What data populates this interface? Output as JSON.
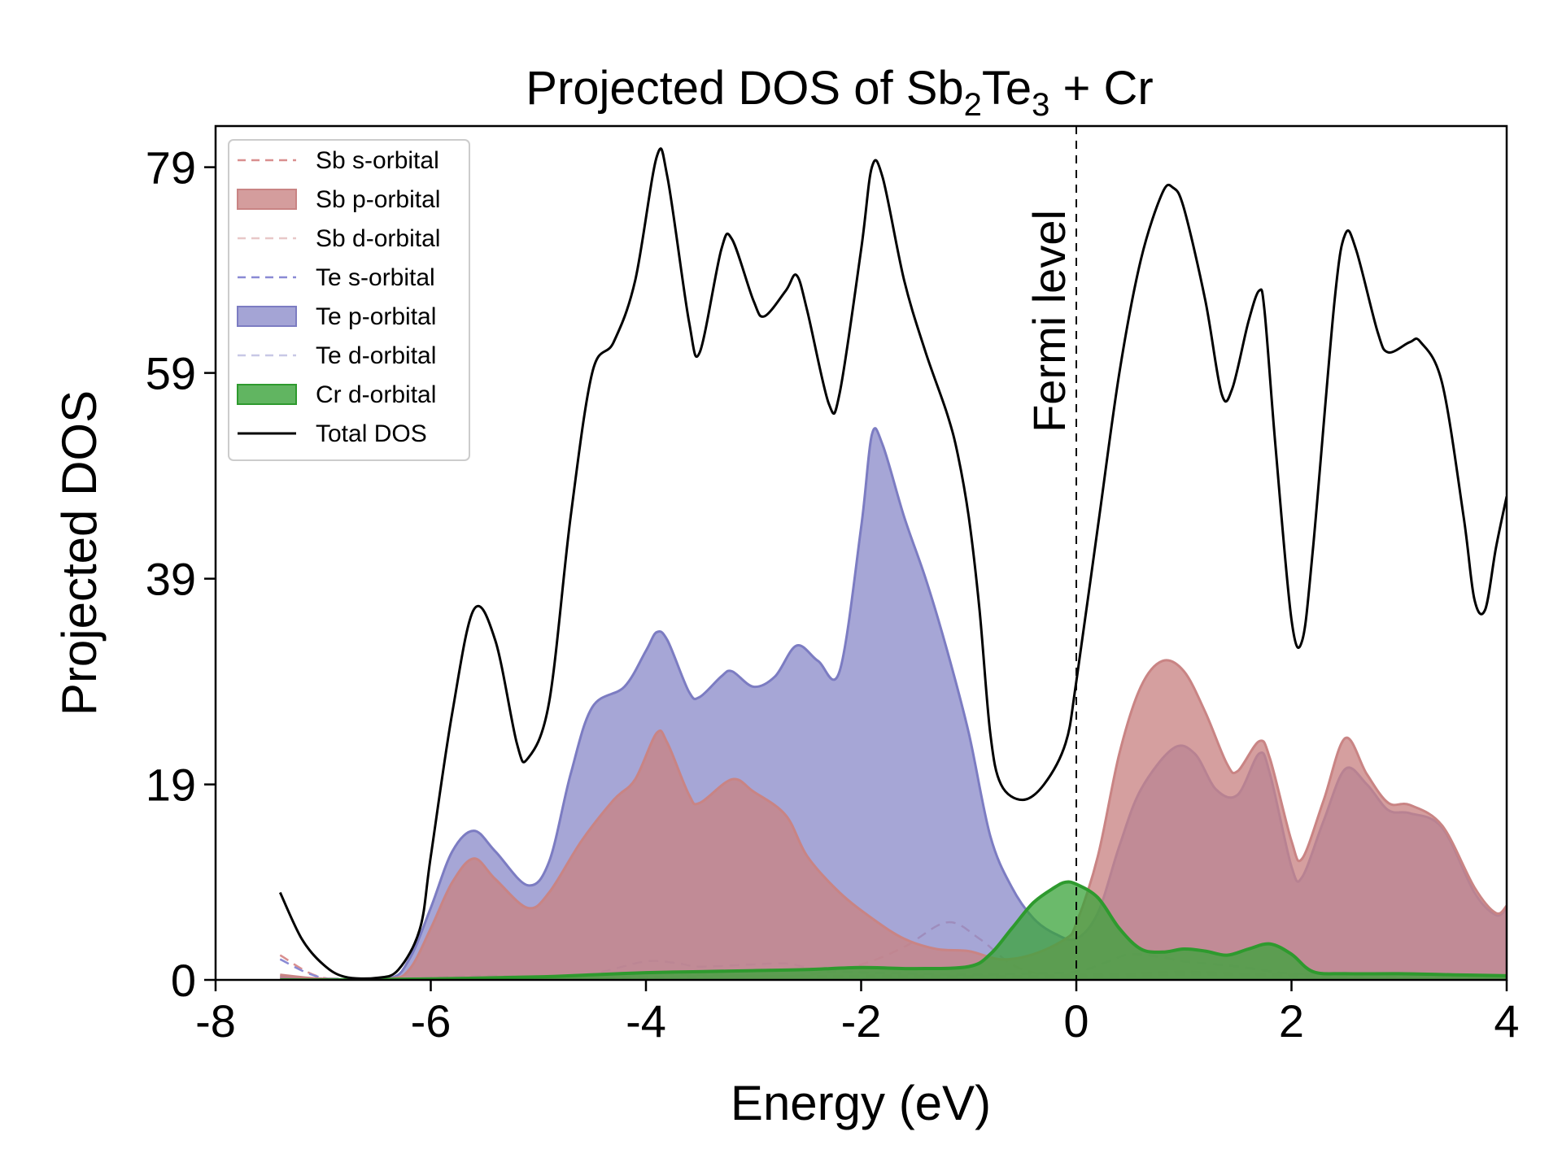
{
  "chart_data": {
    "type": "line",
    "title_main": "Projected DOS of Sb",
    "title_sub1": "2",
    "title_mid": "Te",
    "title_sub2": "3",
    "title_end": " + Cr",
    "xlabel": "Energy (eV)",
    "ylabel": "Projected DOS",
    "xlim": [
      -8,
      4
    ],
    "ylim": [
      0,
      83
    ],
    "xticks": [
      -8,
      -6,
      -4,
      -2,
      0,
      2,
      4
    ],
    "xtick_labels": [
      "-8",
      "-6",
      "-4",
      "-2",
      "0",
      "2",
      "4"
    ],
    "yticks": [
      0,
      19,
      39,
      59,
      79
    ],
    "ytick_labels": [
      "0",
      "19",
      "39",
      "59",
      "79"
    ],
    "fermi_level": 0,
    "fermi_label": "Fermi level",
    "legend_position": "upper-left",
    "series": [
      {
        "name": "Sb s-orbital",
        "style": "dashed",
        "color": "#d98f8f",
        "points": [
          [
            -7.4,
            2.4
          ],
          [
            -7.0,
            0.2
          ],
          [
            -6.4,
            0.1
          ],
          [
            -5.5,
            0.3
          ],
          [
            -5.0,
            0.2
          ],
          [
            -4.5,
            0.3
          ],
          [
            -4.0,
            0.6
          ],
          [
            -3.5,
            0.5
          ],
          [
            -3.0,
            0.4
          ],
          [
            -2.5,
            0.5
          ],
          [
            -2.0,
            1.5
          ],
          [
            -1.6,
            3.2
          ],
          [
            -1.2,
            5.6
          ],
          [
            -0.9,
            4.0
          ],
          [
            -0.6,
            1.5
          ],
          [
            -0.3,
            0.5
          ],
          [
            0,
            0.5
          ],
          [
            0.5,
            0.6
          ],
          [
            1.0,
            0.8
          ],
          [
            1.5,
            0.6
          ],
          [
            2.0,
            0.5
          ],
          [
            2.5,
            0.6
          ],
          [
            3.0,
            0.5
          ],
          [
            3.5,
            0.4
          ],
          [
            4.0,
            0.3
          ]
        ]
      },
      {
        "name": "Sb p-orbital",
        "style": "filled",
        "color": "#c98484",
        "fill_color": "#c98484",
        "points": [
          [
            -7.4,
            0.5
          ],
          [
            -7.0,
            0.1
          ],
          [
            -6.4,
            0.1
          ],
          [
            -6.2,
            1.0
          ],
          [
            -6.0,
            5.0
          ],
          [
            -5.8,
            9.5
          ],
          [
            -5.6,
            11.8
          ],
          [
            -5.4,
            9.8
          ],
          [
            -5.1,
            7.0
          ],
          [
            -4.9,
            8.5
          ],
          [
            -4.6,
            13.5
          ],
          [
            -4.3,
            17.5
          ],
          [
            -4.1,
            19.5
          ],
          [
            -3.9,
            24.0
          ],
          [
            -3.8,
            23.0
          ],
          [
            -3.6,
            18.0
          ],
          [
            -3.5,
            17.2
          ],
          [
            -3.2,
            19.5
          ],
          [
            -3.0,
            18.3
          ],
          [
            -2.7,
            16.0
          ],
          [
            -2.5,
            12.0
          ],
          [
            -2.2,
            8.5
          ],
          [
            -1.9,
            6.0
          ],
          [
            -1.6,
            4.0
          ],
          [
            -1.3,
            3.0
          ],
          [
            -1.0,
            2.8
          ],
          [
            -0.7,
            2.0
          ],
          [
            -0.4,
            2.5
          ],
          [
            -0.1,
            4.0
          ],
          [
            0,
            5.5
          ],
          [
            0.2,
            12.0
          ],
          [
            0.4,
            22.0
          ],
          [
            0.6,
            28.5
          ],
          [
            0.8,
            31.0
          ],
          [
            1.0,
            30.0
          ],
          [
            1.2,
            26.0
          ],
          [
            1.4,
            21.0
          ],
          [
            1.5,
            20.3
          ],
          [
            1.7,
            23.2
          ],
          [
            1.8,
            21.5
          ],
          [
            2.0,
            13.5
          ],
          [
            2.1,
            11.8
          ],
          [
            2.3,
            17.5
          ],
          [
            2.5,
            23.5
          ],
          [
            2.7,
            20.0
          ],
          [
            2.9,
            17.2
          ],
          [
            3.1,
            17.0
          ],
          [
            3.4,
            15.0
          ],
          [
            3.7,
            9.0
          ],
          [
            3.9,
            6.5
          ],
          [
            4.0,
            7.2
          ]
        ]
      },
      {
        "name": "Sb d-orbital",
        "style": "dashed",
        "color": "#e8c8c8",
        "points": [
          [
            -7.4,
            0.2
          ],
          [
            -6.0,
            0.1
          ],
          [
            -4.0,
            0.2
          ],
          [
            -2.0,
            0.3
          ],
          [
            0,
            0.3
          ],
          [
            1.0,
            0.5
          ],
          [
            2.0,
            0.4
          ],
          [
            3.0,
            0.3
          ],
          [
            4.0,
            0.2
          ]
        ]
      },
      {
        "name": "Te s-orbital",
        "style": "dashed",
        "color": "#8a8ad4",
        "points": [
          [
            -7.4,
            2.0
          ],
          [
            -7.0,
            0.2
          ],
          [
            -6.4,
            0.1
          ],
          [
            -5.5,
            0.4
          ],
          [
            -5.0,
            0.3
          ],
          [
            -4.5,
            0.6
          ],
          [
            -4.0,
            1.8
          ],
          [
            -3.7,
            1.6
          ],
          [
            -3.5,
            1.3
          ],
          [
            -3.0,
            1.5
          ],
          [
            -2.7,
            1.6
          ],
          [
            -2.5,
            1.2
          ],
          [
            -2.2,
            0.8
          ],
          [
            -1.5,
            0.6
          ],
          [
            -1.0,
            0.5
          ],
          [
            -0.5,
            0.6
          ],
          [
            0,
            0.8
          ],
          [
            0.3,
            1.8
          ],
          [
            0.5,
            2.5
          ],
          [
            0.8,
            2.2
          ],
          [
            1.0,
            1.8
          ],
          [
            1.5,
            1.3
          ],
          [
            2.0,
            0.6
          ],
          [
            2.5,
            0.7
          ],
          [
            3.0,
            0.5
          ],
          [
            4.0,
            0.3
          ]
        ]
      },
      {
        "name": "Te p-orbital",
        "style": "filled",
        "color": "#7c7cc2",
        "fill_color": "#8d8dca",
        "points": [
          [
            -7.4,
            0.3
          ],
          [
            -7.0,
            0.1
          ],
          [
            -6.4,
            0.1
          ],
          [
            -6.2,
            2.0
          ],
          [
            -6.0,
            7.0
          ],
          [
            -5.8,
            12.5
          ],
          [
            -5.6,
            14.5
          ],
          [
            -5.4,
            12.5
          ],
          [
            -5.1,
            9.2
          ],
          [
            -4.9,
            11.5
          ],
          [
            -4.7,
            20.0
          ],
          [
            -4.5,
            26.5
          ],
          [
            -4.2,
            28.5
          ],
          [
            -4.0,
            32.0
          ],
          [
            -3.9,
            33.8
          ],
          [
            -3.8,
            33.0
          ],
          [
            -3.6,
            28.0
          ],
          [
            -3.5,
            27.5
          ],
          [
            -3.3,
            29.5
          ],
          [
            -3.2,
            30.0
          ],
          [
            -3.0,
            28.5
          ],
          [
            -2.8,
            29.5
          ],
          [
            -2.6,
            32.5
          ],
          [
            -2.4,
            31.0
          ],
          [
            -2.2,
            30.0
          ],
          [
            -2.0,
            44.0
          ],
          [
            -1.9,
            53.0
          ],
          [
            -1.8,
            52.0
          ],
          [
            -1.6,
            45.0
          ],
          [
            -1.4,
            39.0
          ],
          [
            -1.2,
            32.0
          ],
          [
            -1.0,
            24.0
          ],
          [
            -0.8,
            14.0
          ],
          [
            -0.6,
            9.0
          ],
          [
            -0.4,
            6.0
          ],
          [
            -0.2,
            4.5
          ],
          [
            0,
            4.0
          ],
          [
            0.2,
            6.5
          ],
          [
            0.4,
            13.0
          ],
          [
            0.6,
            18.5
          ],
          [
            0.9,
            22.5
          ],
          [
            1.1,
            22.0
          ],
          [
            1.3,
            18.5
          ],
          [
            1.5,
            18.0
          ],
          [
            1.7,
            22.0
          ],
          [
            1.8,
            20.0
          ],
          [
            2.0,
            11.0
          ],
          [
            2.1,
            10.0
          ],
          [
            2.3,
            15.5
          ],
          [
            2.5,
            20.5
          ],
          [
            2.7,
            19.0
          ],
          [
            2.9,
            16.5
          ],
          [
            3.1,
            16.2
          ],
          [
            3.4,
            14.8
          ],
          [
            3.7,
            8.5
          ],
          [
            3.9,
            6.3
          ],
          [
            4.0,
            7.0
          ]
        ]
      },
      {
        "name": "Te d-orbital",
        "style": "dashed",
        "color": "#c8c8e6",
        "points": [
          [
            -7.4,
            0.2
          ],
          [
            -6.0,
            0.1
          ],
          [
            -4.0,
            0.3
          ],
          [
            -2.0,
            0.4
          ],
          [
            0,
            0.4
          ],
          [
            0.5,
            0.6
          ],
          [
            1.0,
            0.7
          ],
          [
            2.0,
            0.5
          ],
          [
            3.0,
            0.4
          ],
          [
            4.0,
            0.3
          ]
        ]
      },
      {
        "name": "Cr d-orbital",
        "style": "filled",
        "color": "#2e9a2e",
        "fill_color": "#3aa33a",
        "points": [
          [
            -7.4,
            0.0
          ],
          [
            -7.0,
            0.0
          ],
          [
            -6.0,
            0.1
          ],
          [
            -5.0,
            0.3
          ],
          [
            -4.5,
            0.5
          ],
          [
            -4.0,
            0.7
          ],
          [
            -3.5,
            0.8
          ],
          [
            -3.0,
            0.9
          ],
          [
            -2.5,
            1.0
          ],
          [
            -2.0,
            1.2
          ],
          [
            -1.5,
            1.1
          ],
          [
            -1.0,
            1.3
          ],
          [
            -0.8,
            2.5
          ],
          [
            -0.6,
            5.0
          ],
          [
            -0.4,
            7.5
          ],
          [
            -0.2,
            9.0
          ],
          [
            -0.1,
            9.5
          ],
          [
            0.0,
            9.3
          ],
          [
            0.2,
            8.0
          ],
          [
            0.4,
            5.0
          ],
          [
            0.6,
            3.0
          ],
          [
            0.8,
            2.7
          ],
          [
            1.0,
            3.0
          ],
          [
            1.2,
            2.8
          ],
          [
            1.4,
            2.4
          ],
          [
            1.6,
            3.0
          ],
          [
            1.8,
            3.5
          ],
          [
            2.0,
            2.5
          ],
          [
            2.2,
            0.8
          ],
          [
            2.5,
            0.6
          ],
          [
            3.0,
            0.6
          ],
          [
            3.5,
            0.5
          ],
          [
            4.0,
            0.4
          ]
        ]
      },
      {
        "name": "Total DOS",
        "style": "solid",
        "color": "#000000",
        "points": [
          [
            -7.4,
            8.5
          ],
          [
            -7.2,
            4.0
          ],
          [
            -7.0,
            1.5
          ],
          [
            -6.8,
            0.3
          ],
          [
            -6.5,
            0.2
          ],
          [
            -6.3,
            1.0
          ],
          [
            -6.1,
            5.0
          ],
          [
            -6.0,
            12.0
          ],
          [
            -5.8,
            26.0
          ],
          [
            -5.6,
            36.0
          ],
          [
            -5.4,
            33.0
          ],
          [
            -5.2,
            23.0
          ],
          [
            -5.1,
            21.5
          ],
          [
            -4.9,
            27.0
          ],
          [
            -4.7,
            45.0
          ],
          [
            -4.5,
            59.0
          ],
          [
            -4.3,
            62.0
          ],
          [
            -4.1,
            68.0
          ],
          [
            -3.9,
            80.0
          ],
          [
            -3.8,
            78.0
          ],
          [
            -3.6,
            64.0
          ],
          [
            -3.5,
            61.0
          ],
          [
            -3.3,
            71.0
          ],
          [
            -3.2,
            72.0
          ],
          [
            -3.0,
            66.0
          ],
          [
            -2.9,
            64.5
          ],
          [
            -2.7,
            67.0
          ],
          [
            -2.6,
            68.5
          ],
          [
            -2.5,
            65.0
          ],
          [
            -2.3,
            56.0
          ],
          [
            -2.2,
            57.0
          ],
          [
            -2.0,
            71.0
          ],
          [
            -1.9,
            79.0
          ],
          [
            -1.8,
            78.0
          ],
          [
            -1.6,
            68.0
          ],
          [
            -1.4,
            61.0
          ],
          [
            -1.2,
            55.0
          ],
          [
            -1.1,
            51.0
          ],
          [
            -1.0,
            45.0
          ],
          [
            -0.9,
            36.0
          ],
          [
            -0.8,
            24.0
          ],
          [
            -0.7,
            19.0
          ],
          [
            -0.5,
            17.5
          ],
          [
            -0.3,
            19.0
          ],
          [
            -0.1,
            23.0
          ],
          [
            0.0,
            29.0
          ],
          [
            0.2,
            44.0
          ],
          [
            0.4,
            59.0
          ],
          [
            0.6,
            70.0
          ],
          [
            0.8,
            76.5
          ],
          [
            0.9,
            77.0
          ],
          [
            1.0,
            75.0
          ],
          [
            1.2,
            66.0
          ],
          [
            1.35,
            57.0
          ],
          [
            1.45,
            57.5
          ],
          [
            1.6,
            64.0
          ],
          [
            1.7,
            67.0
          ],
          [
            1.75,
            65.0
          ],
          [
            1.85,
            52.0
          ],
          [
            2.0,
            35.0
          ],
          [
            2.1,
            33.0
          ],
          [
            2.2,
            42.0
          ],
          [
            2.4,
            66.0
          ],
          [
            2.5,
            72.5
          ],
          [
            2.6,
            71.0
          ],
          [
            2.8,
            63.0
          ],
          [
            2.9,
            61.0
          ],
          [
            3.1,
            62.0
          ],
          [
            3.2,
            62.0
          ],
          [
            3.4,
            58.0
          ],
          [
            3.6,
            45.0
          ],
          [
            3.7,
            37.0
          ],
          [
            3.8,
            36.0
          ],
          [
            3.9,
            42.0
          ],
          [
            4.0,
            47.0
          ]
        ]
      }
    ]
  }
}
